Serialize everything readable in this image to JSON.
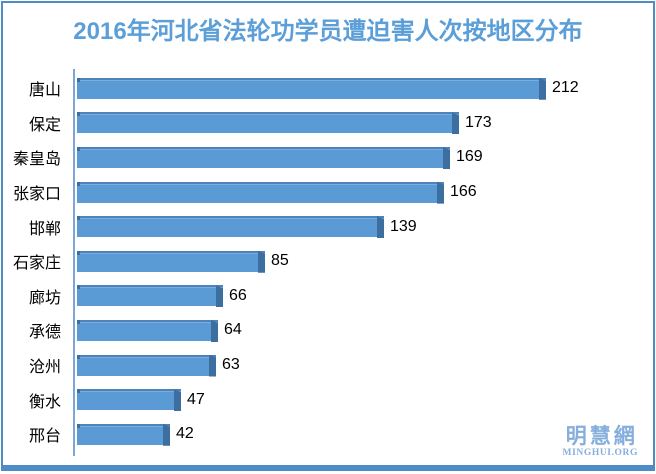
{
  "title": {
    "text": "2016年河北省法轮功学员遭迫害人次按地区分布"
  },
  "chart_data": {
    "type": "bar",
    "orientation": "horizontal",
    "title": "2016年河北省法轮功学员遭迫害人次按地区分布",
    "categories": [
      "唐山",
      "保定",
      "秦皇岛",
      "张家口",
      "邯郸",
      "石家庄",
      "廊坊",
      "承德",
      "沧州",
      "衡水",
      "邢台"
    ],
    "values": [
      212,
      173,
      169,
      166,
      139,
      85,
      66,
      64,
      63,
      47,
      42
    ],
    "xlabel": "",
    "ylabel": "",
    "xlim": [
      0,
      230
    ],
    "grid": false,
    "legend": "none",
    "value_labels_shown": true
  },
  "watermark": {
    "cjk": "明慧網",
    "latin": "MINGHUI.ORG"
  },
  "colors": {
    "title": "#5c9fd8",
    "bar": "#5b9bd5",
    "bar_edge": "#4d83ba",
    "bar_dark": "#3d6ea0",
    "axis": "#7ca6d4",
    "frame": "#4e8cc8",
    "text": "#000000",
    "watermark": "#86aedc"
  }
}
